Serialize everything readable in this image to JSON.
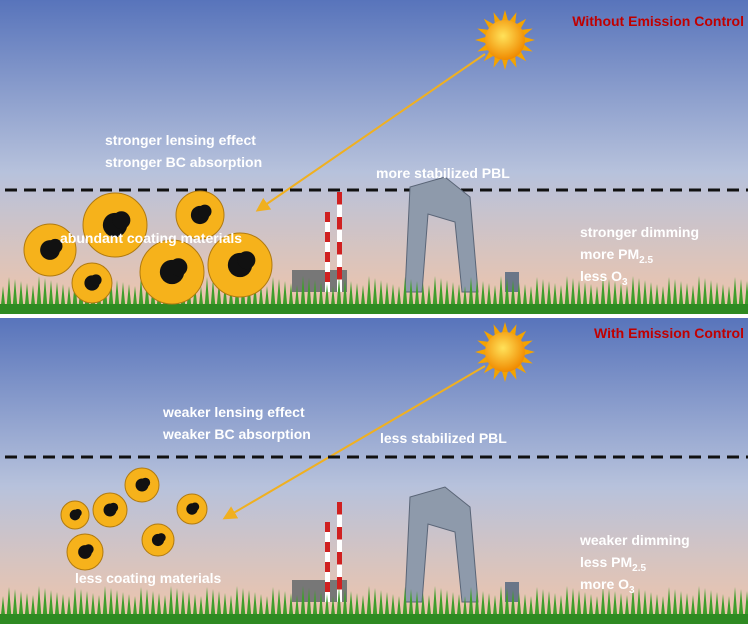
{
  "panels": [
    {
      "title": "Without Emission Control",
      "lensing": [
        "stronger lensing effect",
        "stronger BC absorption"
      ],
      "pbl": "more stabilized PBL",
      "coating": "abundant coating materials",
      "effects": [
        {
          "text": "stronger dimming"
        },
        {
          "text": "more PM",
          "sub": "2.5"
        },
        {
          "text": "less O",
          "sub": "3"
        }
      ]
    },
    {
      "title": "With Emission Control",
      "lensing": [
        "weaker lensing effect",
        "weaker BC absorption"
      ],
      "pbl": "less stabilized PBL",
      "coating": "less coating materials",
      "effects": [
        {
          "text": "weaker dimming"
        },
        {
          "text": "less PM",
          "sub": "2.5"
        },
        {
          "text": "more O",
          "sub": "3"
        }
      ]
    }
  ]
}
